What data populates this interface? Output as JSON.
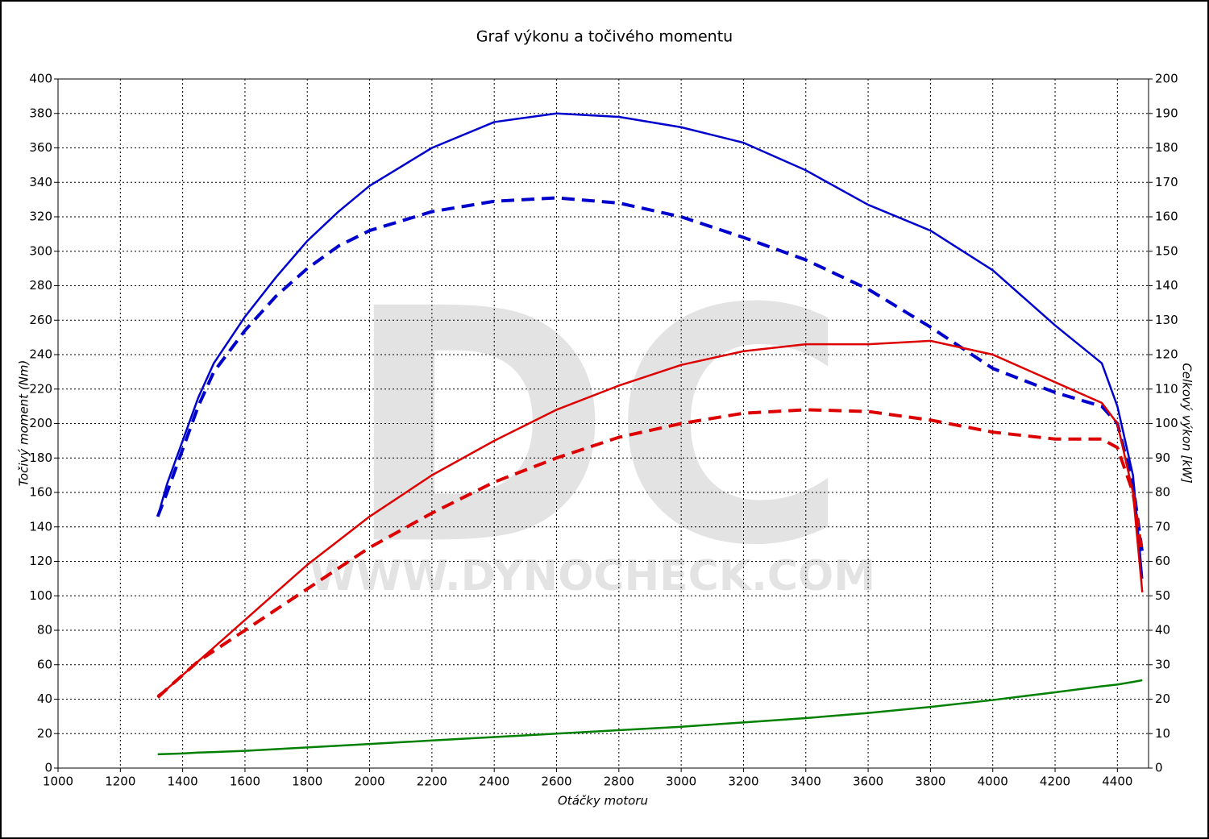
{
  "chart_data": {
    "type": "line",
    "title": "Graf výkonu a točivého momentu",
    "x_label": "Otáčky motoru",
    "y_label": "Točivý moment (Nm)",
    "y2_label": "Celkový výkon [kW]",
    "watermark": [
      "DC",
      "WWW.DYNOCHECK.COM"
    ],
    "grid": true,
    "xlim": [
      1000,
      4500
    ],
    "xticks": [
      1000,
      1200,
      1400,
      1600,
      1800,
      2000,
      2200,
      2400,
      2600,
      2800,
      3000,
      3200,
      3400,
      3600,
      3800,
      4000,
      4200,
      4400
    ],
    "ylim": [
      0,
      400
    ],
    "yticks": [
      0,
      20,
      40,
      60,
      80,
      100,
      120,
      140,
      160,
      180,
      200,
      220,
      240,
      260,
      280,
      300,
      320,
      340,
      360,
      380,
      400
    ],
    "y2lim": [
      0,
      200
    ],
    "y2ticks": [
      0,
      10,
      20,
      30,
      40,
      50,
      60,
      70,
      80,
      90,
      100,
      110,
      120,
      130,
      140,
      150,
      160,
      170,
      180,
      190,
      200
    ],
    "x": [
      1320,
      1350,
      1400,
      1450,
      1500,
      1600,
      1700,
      1800,
      1900,
      2000,
      2200,
      2400,
      2600,
      2800,
      3000,
      3200,
      3400,
      3600,
      3800,
      4000,
      4200,
      4350,
      4400,
      4450,
      4480
    ],
    "series": [
      {
        "color": "#0000cc",
        "dash": false,
        "axis": "y",
        "values": [
          146,
          165,
          190,
          215,
          235,
          262,
          285,
          306,
          323,
          338,
          360,
          375,
          380,
          378,
          372,
          363,
          347,
          327,
          312,
          289,
          257,
          235,
          210,
          170,
          110
        ]
      },
      {
        "color": "#0000cc",
        "dash": true,
        "axis": "y",
        "values": [
          146,
          160,
          185,
          210,
          230,
          254,
          274,
          290,
          303,
          312,
          323,
          329,
          331,
          328,
          320,
          308,
          295,
          278,
          256,
          232,
          218,
          210,
          200,
          165,
          125
        ]
      },
      {
        "color": "#dd0000",
        "dash": false,
        "axis": "y2",
        "values": [
          21,
          23,
          27,
          31,
          35,
          43,
          51,
          59,
          66,
          73,
          85,
          95,
          104,
          111,
          117,
          121,
          123,
          123,
          124,
          120,
          112,
          106,
          100,
          80,
          51
        ]
      },
      {
        "color": "#dd0000",
        "dash": true,
        "axis": "y2",
        "values": [
          20.5,
          23,
          27,
          31,
          34,
          40,
          46,
          52,
          58,
          64,
          74,
          83,
          90,
          96,
          100,
          103,
          104,
          103.5,
          101,
          97.5,
          95.5,
          95.5,
          93,
          80,
          62
        ]
      },
      {
        "color": "#008000",
        "dash": false,
        "axis": "y",
        "values": [
          8,
          8.2,
          8.5,
          9,
          9.3,
          10,
          11,
          12,
          13,
          14,
          16,
          18,
          20,
          22,
          24,
          26.5,
          29,
          32,
          35.5,
          39.5,
          44,
          47.5,
          48.5,
          50,
          51
        ]
      }
    ]
  }
}
